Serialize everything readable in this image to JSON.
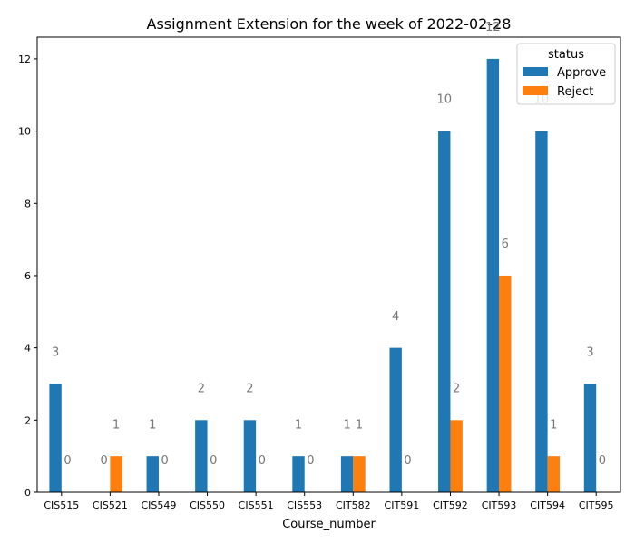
{
  "chart_data": {
    "type": "bar",
    "title": "Assignment Extension for the week of 2022-02-28",
    "xlabel": "Course_number",
    "ylabel": "",
    "ylim": [
      0,
      12.6
    ],
    "yticks": [
      0,
      2,
      4,
      6,
      8,
      10,
      12
    ],
    "grid": false,
    "categories": [
      "CIS515",
      "CIS521",
      "CIS549",
      "CIS550",
      "CIS551",
      "CIS553",
      "CIT582",
      "CIT591",
      "CIT592",
      "CIT593",
      "CIT594",
      "CIT595"
    ],
    "legend": {
      "title": "status",
      "placement": "top-right"
    },
    "series": [
      {
        "name": "Approve",
        "color": "#1f77b4",
        "values": [
          3,
          0,
          1,
          2,
          2,
          1,
          1,
          4,
          10,
          12,
          10,
          3
        ]
      },
      {
        "name": "Reject",
        "color": "#ff7f0e",
        "values": [
          0,
          1,
          0,
          0,
          0,
          0,
          1,
          0,
          2,
          6,
          1,
          0
        ]
      }
    ],
    "data_label_color": "#777777"
  }
}
